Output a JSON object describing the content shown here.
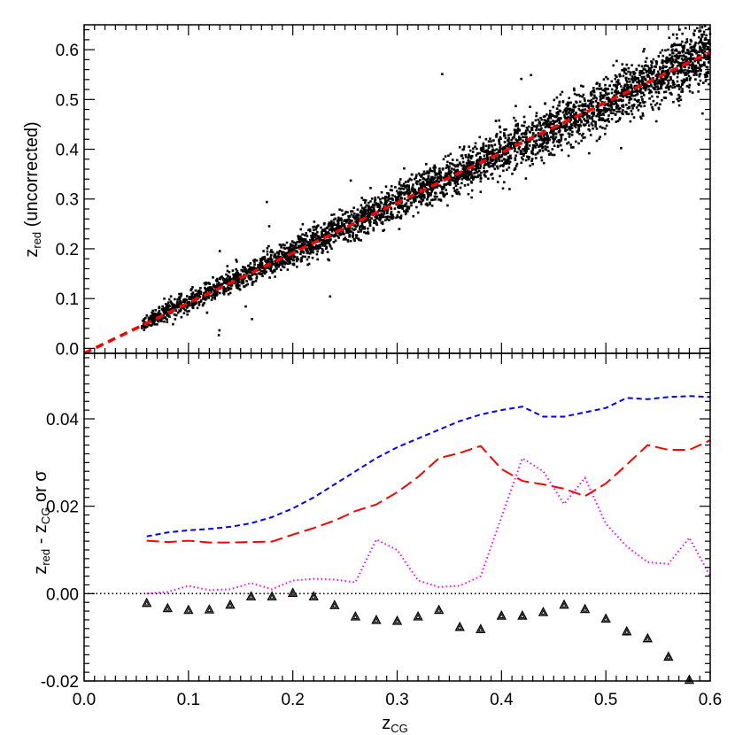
{
  "colors": {
    "scatter": "#000000",
    "fit_line": "#ff0000",
    "sigma_total": "#0000ff",
    "sigma_red": "#ff0000",
    "sigma_magenta": "#ff00ff",
    "zero_line": "#000000"
  },
  "chart_data": [
    {
      "type": "scatter",
      "panel": "top",
      "ylabel": {
        "main": "z",
        "sub": "red",
        "suffix": " (uncorrected)"
      },
      "xlim": [
        0.0,
        0.6
      ],
      "ylim": [
        -0.01,
        0.65
      ],
      "ytick_labels": [
        "0.0",
        "0.1",
        "0.2",
        "0.3",
        "0.4",
        "0.5",
        "0.6"
      ],
      "ytick_values": [
        0.0,
        0.1,
        0.2,
        0.3,
        0.4,
        0.5,
        0.6
      ],
      "scatter_x_range": [
        0.055,
        0.6
      ],
      "scatter_relation": "z_red ≈ z_CG, scatter width growing from ~0.01 at z_CG=0.06 to ~0.045 at z_CG=0.6",
      "fit_line": {
        "x": [
          0.0,
          0.6
        ],
        "y": [
          -0.01,
          0.595
        ]
      },
      "grid": false
    },
    {
      "type": "line",
      "panel": "bottom",
      "xlabel": {
        "main": "z",
        "sub": "CG"
      },
      "ylabel": {
        "main": "z",
        "sub1": "red",
        "mid": " - z",
        "sub2": "CG",
        "suffix": " or σ"
      },
      "xlim": [
        0.0,
        0.6
      ],
      "ylim": [
        -0.02,
        0.055
      ],
      "xtick_labels": [
        "0.0",
        "0.1",
        "0.2",
        "0.3",
        "0.4",
        "0.5",
        "0.6"
      ],
      "xtick_values": [
        0.0,
        0.1,
        0.2,
        0.3,
        0.4,
        0.5,
        0.6
      ],
      "ytick_labels": [
        "-0.02",
        "0.00",
        "0.02",
        "0.04"
      ],
      "ytick_values": [
        -0.02,
        0.0,
        0.02,
        0.04
      ],
      "zero_line": 0.0,
      "series": [
        {
          "style": "blue-short-dash",
          "x": [
            0.06,
            0.08,
            0.1,
            0.12,
            0.14,
            0.16,
            0.18,
            0.2,
            0.22,
            0.24,
            0.26,
            0.28,
            0.3,
            0.32,
            0.34,
            0.36,
            0.38,
            0.4,
            0.42,
            0.44,
            0.46,
            0.48,
            0.5,
            0.52,
            0.54,
            0.56,
            0.58,
            0.6
          ],
          "y": [
            0.0131,
            0.014,
            0.0145,
            0.0148,
            0.0153,
            0.0161,
            0.0175,
            0.0195,
            0.022,
            0.025,
            0.028,
            0.031,
            0.0335,
            0.0355,
            0.0375,
            0.0395,
            0.041,
            0.042,
            0.0428,
            0.0405,
            0.0405,
            0.0415,
            0.0425,
            0.0448,
            0.0445,
            0.045,
            0.0452,
            0.045
          ]
        },
        {
          "style": "red-long-dash",
          "x": [
            0.06,
            0.08,
            0.1,
            0.12,
            0.14,
            0.16,
            0.18,
            0.2,
            0.22,
            0.24,
            0.26,
            0.28,
            0.3,
            0.32,
            0.34,
            0.36,
            0.38,
            0.4,
            0.42,
            0.44,
            0.46,
            0.48,
            0.5,
            0.52,
            0.54,
            0.56,
            0.58,
            0.6
          ],
          "y": [
            0.0121,
            0.0118,
            0.0121,
            0.0117,
            0.0117,
            0.0118,
            0.0119,
            0.0135,
            0.015,
            0.0167,
            0.0189,
            0.0204,
            0.0232,
            0.0267,
            0.031,
            0.0322,
            0.0338,
            0.0285,
            0.0258,
            0.025,
            0.024,
            0.0223,
            0.0252,
            0.0295,
            0.034,
            0.0329,
            0.0329,
            0.0351
          ]
        },
        {
          "style": "magenta-dotted",
          "x": [
            0.06,
            0.08,
            0.1,
            0.12,
            0.14,
            0.16,
            0.18,
            0.2,
            0.22,
            0.24,
            0.26,
            0.28,
            0.3,
            0.32,
            0.34,
            0.36,
            0.38,
            0.4,
            0.42,
            0.44,
            0.46,
            0.48,
            0.5,
            0.52,
            0.54,
            0.56,
            0.58,
            0.6
          ],
          "y": [
            0.0,
            0.0004,
            0.0018,
            0.0008,
            0.001,
            0.0024,
            0.001,
            0.003,
            0.0034,
            0.0032,
            0.0026,
            0.0124,
            0.01,
            0.003,
            0.0015,
            0.0018,
            0.004,
            0.0175,
            0.031,
            0.028,
            0.0205,
            0.0265,
            0.016,
            0.0108,
            0.0072,
            0.0068,
            0.0128,
            0.004
          ]
        },
        {
          "style": "triangles",
          "x": [
            0.06,
            0.08,
            0.1,
            0.12,
            0.14,
            0.16,
            0.18,
            0.2,
            0.22,
            0.24,
            0.26,
            0.28,
            0.3,
            0.32,
            0.34,
            0.36,
            0.38,
            0.4,
            0.42,
            0.44,
            0.46,
            0.48,
            0.5,
            0.52,
            0.54,
            0.56,
            0.58
          ],
          "y": [
            -0.0022,
            -0.0034,
            -0.0038,
            -0.0037,
            -0.0026,
            -0.0007,
            -0.0007,
            0.0001,
            -0.0007,
            -0.0027,
            -0.0053,
            -0.0061,
            -0.0063,
            -0.0053,
            -0.0038,
            -0.0077,
            -0.0082,
            -0.0051,
            -0.0051,
            -0.0043,
            -0.0026,
            -0.0036,
            -0.0058,
            -0.0087,
            -0.0103,
            -0.0145,
            -0.0198
          ]
        }
      ],
      "grid": false
    }
  ]
}
